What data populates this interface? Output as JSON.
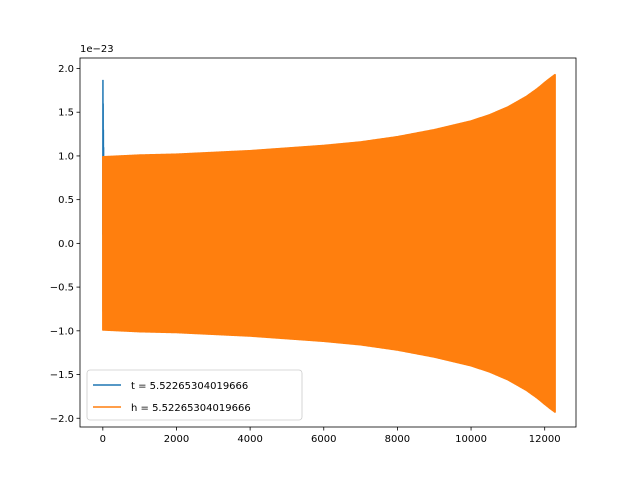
{
  "chart_data": {
    "type": "line",
    "offset_text": "1e−23",
    "x_ticks": [
      0,
      2000,
      4000,
      6000,
      8000,
      10000,
      12000
    ],
    "x_tick_labels": [
      "0",
      "2000",
      "4000",
      "6000",
      "8000",
      "10000",
      "12000"
    ],
    "y_ticks": [
      -2.0,
      -1.5,
      -1.0,
      -0.5,
      0.0,
      0.5,
      1.0,
      1.5,
      2.0
    ],
    "y_tick_labels": [
      "−2.0",
      "−1.5",
      "−1.0",
      "−0.5",
      "0.0",
      "0.5",
      "1.0",
      "1.5",
      "2.0"
    ],
    "xlim": [
      -620,
      12850
    ],
    "ylim": [
      -2.1,
      2.12
    ],
    "legend_position": "lower-left",
    "series": [
      {
        "name": "t = 5.52265304019666",
        "color": "#1f77b4",
        "x": [
          0,
          3,
          6,
          9,
          12,
          15,
          18,
          21,
          24,
          27,
          30
        ],
        "y": [
          0.1,
          1.87,
          -0.78,
          1.6,
          -0.6,
          1.3,
          -0.3,
          1.1,
          -0.7,
          0.9,
          0.0
        ]
      },
      {
        "name": "h = 5.52265304019666",
        "color": "#ff7f0e",
        "envelope_x": [
          0,
          500,
          1000,
          2000,
          3000,
          4000,
          5000,
          6000,
          7000,
          8000,
          9000,
          10000,
          10500,
          11000,
          11500,
          11800,
          12000,
          12150,
          12280
        ],
        "envelope_amplitude": [
          0.99,
          1.0,
          1.01,
          1.02,
          1.04,
          1.06,
          1.09,
          1.12,
          1.16,
          1.22,
          1.3,
          1.4,
          1.47,
          1.56,
          1.68,
          1.77,
          1.84,
          1.89,
          1.93
        ]
      }
    ]
  }
}
